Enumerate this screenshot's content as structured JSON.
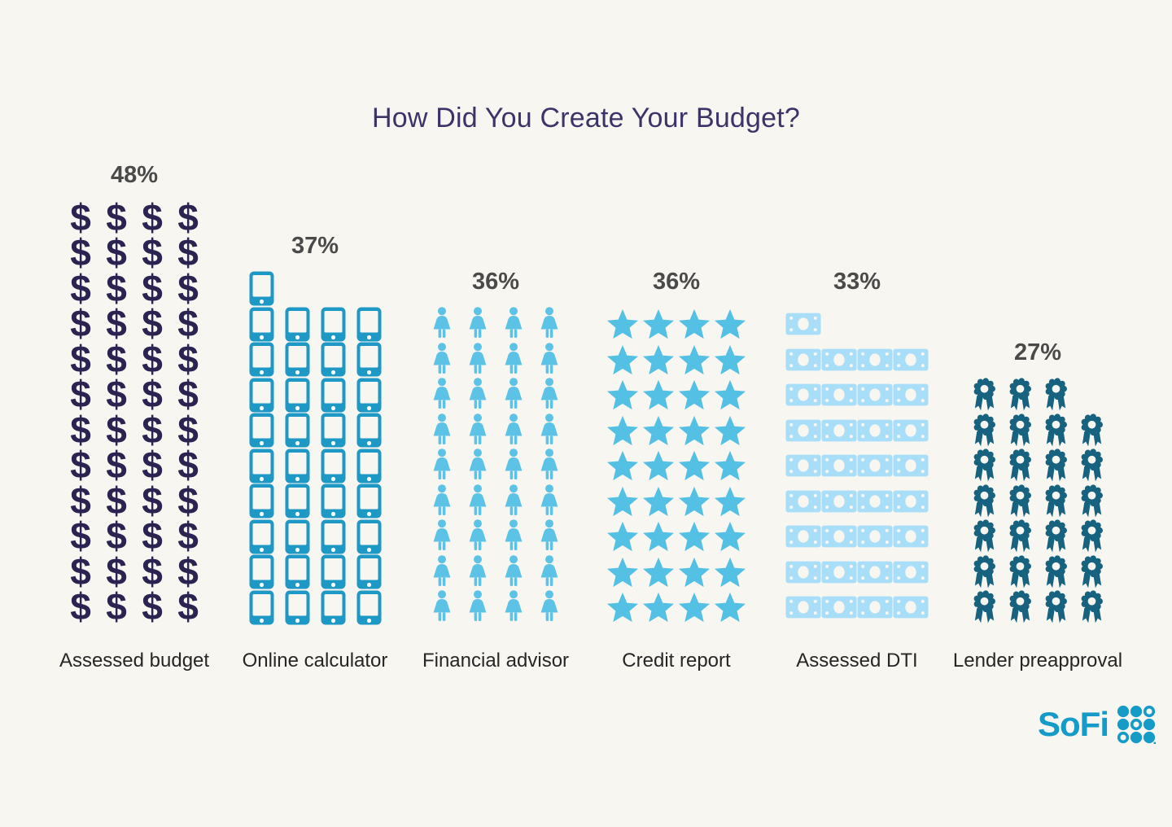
{
  "title": "How Did You Create Your Budget?",
  "brand": {
    "logo_text": "SoFi"
  },
  "icons": {
    "dollar_glyph": "$"
  },
  "colors": {
    "background": "#f8f6f1",
    "title_text": "#3c3468",
    "percent_text": "#4a4a4a",
    "category_text": "#262626",
    "sofi_blue": "#149bc7"
  },
  "chart_data": {
    "type": "bar",
    "subtype": "pictogram",
    "title": "How Did You Create Your Budget?",
    "unit_per_icon": 1,
    "icons_per_row": 4,
    "orientation": "vertical-bottom-aligned",
    "categories": [
      "Assessed budget",
      "Online calculator",
      "Financial advisor",
      "Credit report",
      "Assessed DTI",
      "Lender preapproval"
    ],
    "values": [
      48,
      37,
      36,
      36,
      33,
      27
    ],
    "series": [
      {
        "label": "Assessed budget",
        "value": 48,
        "value_label": "48%",
        "icon": "dollar-icon",
        "color": "#2b2350"
      },
      {
        "label": "Online calculator",
        "value": 37,
        "value_label": "37%",
        "icon": "phone-icon",
        "color": "#1e98c4"
      },
      {
        "label": "Financial advisor",
        "value": 36,
        "value_label": "36%",
        "icon": "person-icon",
        "color": "#5cc3e6"
      },
      {
        "label": "Credit report",
        "value": 36,
        "value_label": "36%",
        "icon": "star-icon",
        "color": "#54c0e4"
      },
      {
        "label": "Assessed DTI",
        "value": 33,
        "value_label": "33%",
        "icon": "money-bill-icon",
        "color": "#a9def8"
      },
      {
        "label": "Lender preapproval",
        "value": 27,
        "value_label": "27%",
        "icon": "ribbon-icon",
        "color": "#17637f"
      }
    ]
  }
}
